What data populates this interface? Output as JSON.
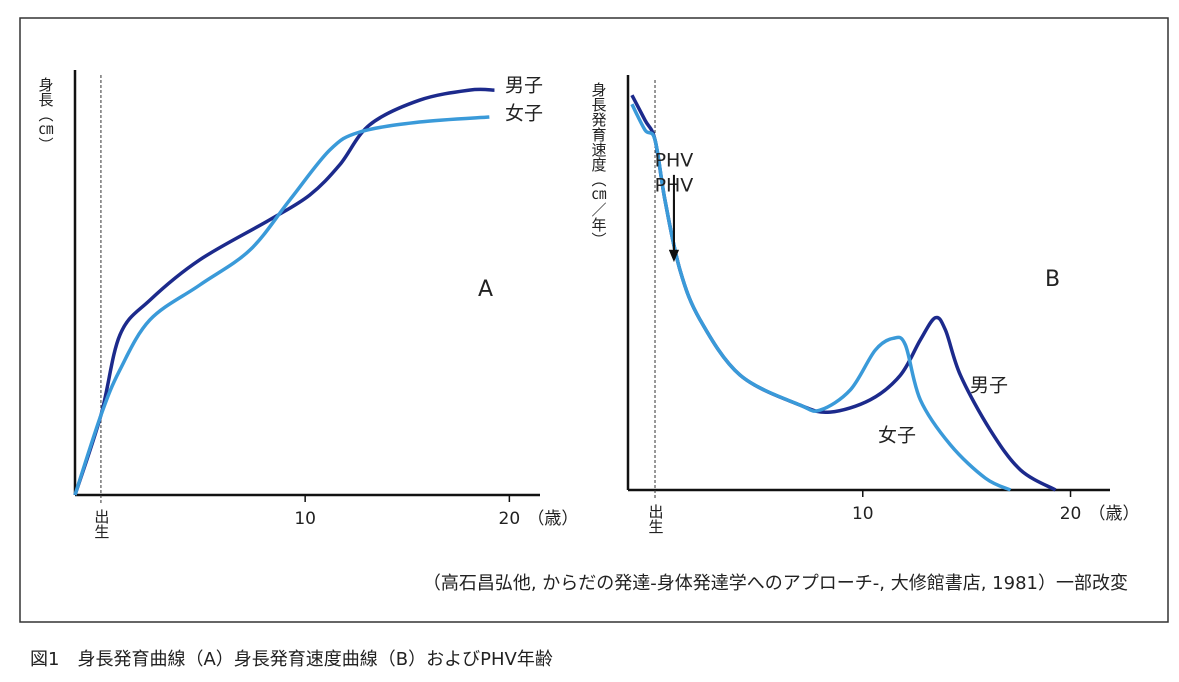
{
  "chart_data": [
    {
      "type": "line",
      "ylabel": "身長（㎝）",
      "xlabel": "（歳）",
      "panel_label": "A",
      "xlim": [
        -1.27,
        21.5
      ],
      "ylim": [
        0,
        100
      ],
      "xticks": [
        {
          "value": 0,
          "label": "出生"
        },
        10,
        20
      ],
      "series": [
        {
          "name": "男子",
          "color": "#1c2a8c",
          "x": [
            -1.27,
            0,
            0.93,
            2.4,
            4.84,
            8.26,
            10.22,
            11.69,
            13.15,
            15.6,
            18.04,
            19.27
          ],
          "values": [
            0,
            19,
            38.1,
            46.4,
            56,
            65.5,
            71.4,
            78.6,
            88.1,
            94,
            96.4,
            96.4
          ]
        },
        {
          "name": "女子",
          "color": "#3a9ad9",
          "x": [
            -1.27,
            0,
            0.93,
            2.4,
            4.84,
            7.29,
            9.24,
            11.2,
            12.66,
            15.6,
            19.02
          ],
          "values": [
            0,
            19,
            29.8,
            41.7,
            50,
            58.3,
            70.2,
            82.1,
            86.4,
            88.8,
            90
          ]
        }
      ]
    },
    {
      "type": "line",
      "ylabel": "身長発育速度（㎝／年）",
      "xlabel": "（歳）",
      "panel_label": "B",
      "annotations": [
        "PHV",
        "PHV"
      ],
      "xlim": [
        -1.3,
        21.9
      ],
      "ylim": [
        0,
        100
      ],
      "xticks": [
        {
          "value": 0,
          "label": "出生"
        },
        10,
        20
      ],
      "series": [
        {
          "name": "男子",
          "color": "#1c2a8c",
          "x": [
            -1.11,
            -0.48,
            0,
            0.48,
            1.2,
            2.17,
            4.1,
            6.99,
            8.43,
            10.36,
            11.81,
            12.77,
            13.49,
            13.98,
            14.7,
            16.14,
            17.59,
            19.28
          ],
          "values": [
            96.3,
            90.2,
            85.4,
            70.7,
            53.7,
            41.5,
            28,
            20.7,
            19,
            22,
            28,
            36.6,
            42,
            39,
            28,
            14.6,
            4.9,
            0
          ]
        },
        {
          "name": "女子",
          "color": "#3a9ad9",
          "x": [
            -1.11,
            -0.48,
            0,
            0.48,
            1.2,
            2.17,
            4.1,
            6.99,
            7.95,
            9.4,
            10.6,
            11.47,
            12.05,
            12.77,
            14.22,
            15.9,
            17.11
          ],
          "values": [
            94.1,
            87.8,
            85.4,
            70.7,
            53.7,
            41.5,
            28,
            20.7,
            19.5,
            24.4,
            34.1,
            37,
            35.4,
            22,
            11,
            2.9,
            0
          ]
        }
      ]
    }
  ],
  "source": "（高石昌弘他, からだの発達-身体発達学へのアプローチ-, 大修館書店, 1981）一部改変",
  "caption": "図1　身長発育曲線（A）身長発育速度曲線（B）およびPHV年齢"
}
